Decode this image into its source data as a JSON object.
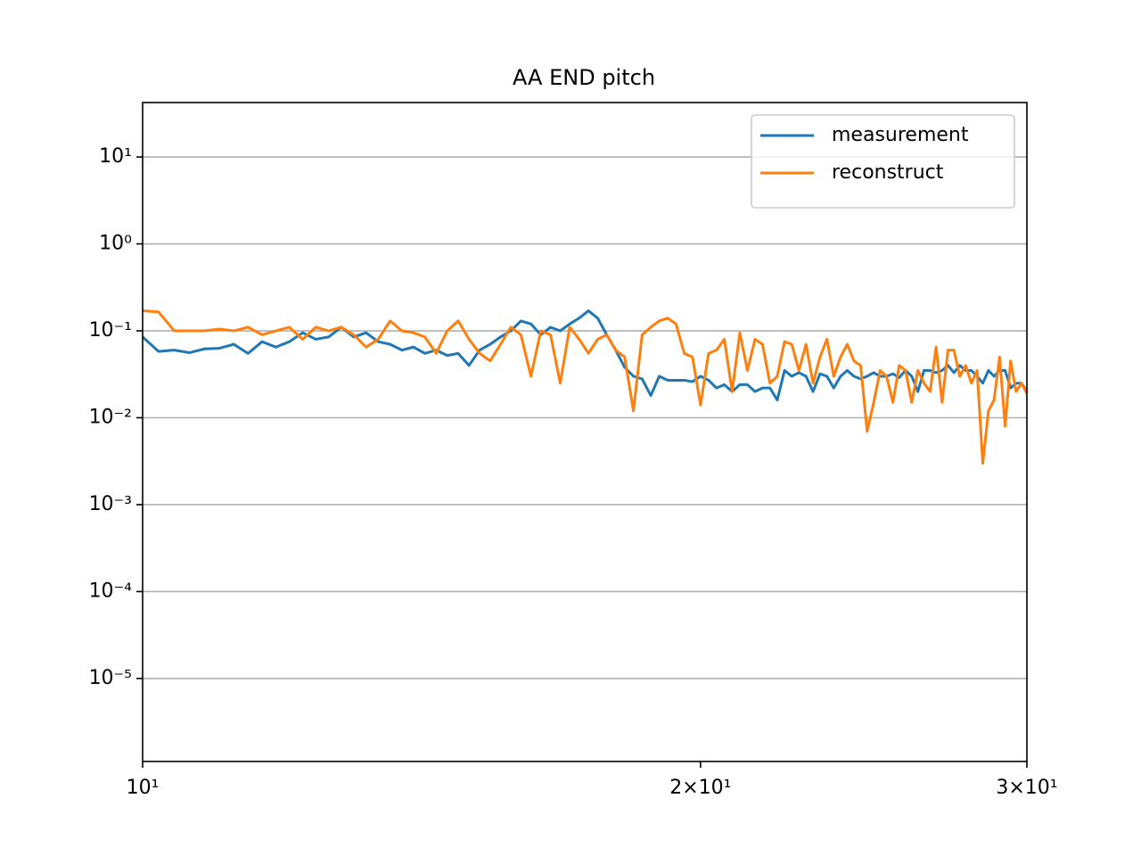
{
  "chart_data": {
    "type": "line",
    "title": "AA END pitch",
    "x": [
      10,
      10.2,
      10.4,
      10.6,
      10.8,
      11,
      11.2,
      11.4,
      11.6,
      11.8,
      12,
      12.2,
      12.4,
      12.6,
      12.8,
      13,
      13.2,
      13.4,
      13.6,
      13.8,
      14,
      14.2,
      14.4,
      14.6,
      14.8,
      15,
      15.2,
      15.4,
      15.6,
      15.8,
      16,
      16.2,
      16.4,
      16.6,
      16.8,
      17,
      17.2,
      17.4,
      17.6,
      17.8,
      18,
      18.2,
      18.4,
      18.6,
      18.8,
      19,
      19.2,
      19.4,
      19.6,
      19.8,
      20,
      20.2,
      20.4,
      20.6,
      20.8,
      21,
      21.2,
      21.4,
      21.6,
      21.8,
      22,
      22.2,
      22.4,
      22.6,
      22.8,
      23,
      23.2,
      23.4,
      23.6,
      23.8,
      24,
      24.2,
      24.4,
      24.6,
      24.8,
      25,
      25.2,
      25.4,
      25.6,
      25.8,
      26,
      26.2,
      26.4,
      26.6,
      26.8,
      27,
      27.2,
      27.4,
      27.6,
      27.8,
      28,
      28.2,
      28.4,
      28.6,
      28.8,
      29,
      29.2,
      29.4,
      29.6,
      29.8,
      30
    ],
    "series": [
      {
        "name": "measurement",
        "color": "#1f77b4",
        "values": [
          0.085,
          0.058,
          0.06,
          0.056,
          0.062,
          0.063,
          0.07,
          0.055,
          0.075,
          0.065,
          0.075,
          0.095,
          0.08,
          0.085,
          0.11,
          0.085,
          0.095,
          0.075,
          0.07,
          0.06,
          0.065,
          0.055,
          0.06,
          0.052,
          0.055,
          0.04,
          0.06,
          0.07,
          0.085,
          0.1,
          0.13,
          0.12,
          0.09,
          0.11,
          0.1,
          0.12,
          0.14,
          0.17,
          0.14,
          0.09,
          0.06,
          0.038,
          0.03,
          0.028,
          0.018,
          0.03,
          0.027,
          0.027,
          0.027,
          0.026,
          0.03,
          0.027,
          0.022,
          0.024,
          0.02,
          0.024,
          0.024,
          0.02,
          0.022,
          0.022,
          0.016,
          0.035,
          0.03,
          0.033,
          0.03,
          0.02,
          0.032,
          0.03,
          0.022,
          0.03,
          0.035,
          0.03,
          0.028,
          0.03,
          0.033,
          0.03,
          0.03,
          0.032,
          0.029,
          0.035,
          0.03,
          0.02,
          0.035,
          0.035,
          0.033,
          0.035,
          0.04,
          0.033,
          0.04,
          0.035,
          0.035,
          0.03,
          0.025,
          0.035,
          0.03,
          0.035,
          0.035,
          0.022,
          0.025,
          0.025,
          0.02
        ]
      },
      {
        "name": "reconstruct",
        "color": "#ff7f0e",
        "values": [
          0.17,
          0.165,
          0.1,
          0.1,
          0.1,
          0.105,
          0.1,
          0.11,
          0.09,
          0.1,
          0.11,
          0.08,
          0.11,
          0.1,
          0.11,
          0.09,
          0.065,
          0.08,
          0.13,
          0.1,
          0.095,
          0.085,
          0.055,
          0.1,
          0.13,
          0.08,
          0.055,
          0.045,
          0.07,
          0.11,
          0.09,
          0.03,
          0.1,
          0.09,
          0.025,
          0.11,
          0.08,
          0.055,
          0.08,
          0.09,
          0.06,
          0.05,
          0.012,
          0.09,
          0.11,
          0.13,
          0.14,
          0.12,
          0.055,
          0.05,
          0.014,
          0.055,
          0.06,
          0.08,
          0.02,
          0.095,
          0.035,
          0.08,
          0.07,
          0.025,
          0.03,
          0.075,
          0.07,
          0.035,
          0.07,
          0.025,
          0.05,
          0.08,
          0.03,
          0.05,
          0.07,
          0.045,
          0.04,
          0.007,
          0.015,
          0.035,
          0.03,
          0.015,
          0.04,
          0.035,
          0.015,
          0.035,
          0.025,
          0.02,
          0.065,
          0.015,
          0.06,
          0.06,
          0.03,
          0.04,
          0.025,
          0.035,
          0.003,
          0.012,
          0.016,
          0.05,
          0.008,
          0.045,
          0.02,
          0.025,
          0.019
        ]
      }
    ],
    "xscale": "log",
    "yscale": "log",
    "xlim": [
      10,
      30
    ],
    "ylim": [
      1.11e-06,
      42.3
    ],
    "xticks": [
      {
        "value": 10,
        "label": "10¹"
      },
      {
        "value": 20,
        "label": "2×10¹"
      },
      {
        "value": 30,
        "label": "3×10¹"
      }
    ],
    "yticks": [
      {
        "value": 1e-05,
        "label": "10⁻⁵"
      },
      {
        "value": 0.0001,
        "label": "10⁻⁴"
      },
      {
        "value": 0.001,
        "label": "10⁻³"
      },
      {
        "value": 0.01,
        "label": "10⁻²"
      },
      {
        "value": 0.1,
        "label": "10⁻¹"
      },
      {
        "value": 1,
        "label": "10⁰"
      },
      {
        "value": 10,
        "label": "10¹"
      }
    ],
    "grid": "y",
    "legend": "upper right"
  }
}
